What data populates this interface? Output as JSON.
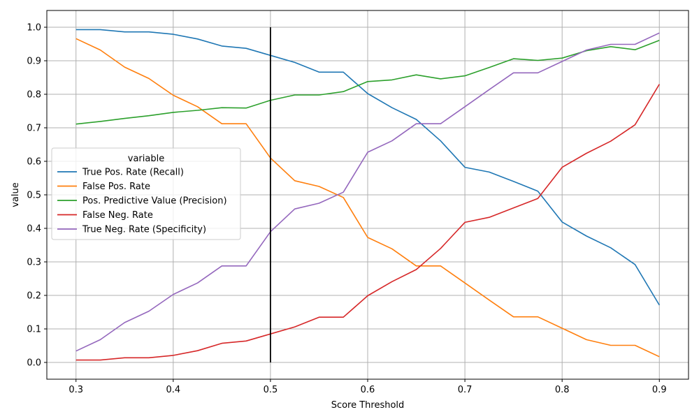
{
  "chart_data": {
    "type": "line",
    "xlabel": "Score Threshold",
    "ylabel": "value",
    "xlim": [
      0.27,
      0.93
    ],
    "ylim": [
      -0.05,
      1.05
    ],
    "xticks": [
      0.3,
      0.4,
      0.5,
      0.6,
      0.7,
      0.8,
      0.9
    ],
    "xtick_labels": [
      "0.3",
      "0.4",
      "0.5",
      "0.6",
      "0.7",
      "0.8",
      "0.9"
    ],
    "yticks": [
      0.0,
      0.1,
      0.2,
      0.3,
      0.4,
      0.5,
      0.6,
      0.7,
      0.8,
      0.9,
      1.0
    ],
    "ytick_labels": [
      "0.0",
      "0.1",
      "0.2",
      "0.3",
      "0.4",
      "0.5",
      "0.6",
      "0.7",
      "0.8",
      "0.9",
      "1.0"
    ],
    "grid": true,
    "legend": {
      "title": "variable",
      "position": "center-left"
    },
    "vline": {
      "x": 0.5,
      "ymin": 0.0,
      "ymax": 1.0,
      "color": "#000000"
    },
    "x": [
      0.3,
      0.325,
      0.35,
      0.375,
      0.4,
      0.425,
      0.45,
      0.475,
      0.5,
      0.525,
      0.55,
      0.575,
      0.6,
      0.625,
      0.65,
      0.675,
      0.7,
      0.725,
      0.75,
      0.775,
      0.8,
      0.825,
      0.85,
      0.875,
      0.9
    ],
    "series": [
      {
        "name": "True Pos. Rate (Recall)",
        "color": "#1f77b4",
        "values": [
          0.993,
          0.993,
          0.986,
          0.986,
          0.979,
          0.965,
          0.944,
          0.937,
          0.916,
          0.895,
          0.866,
          0.866,
          0.802,
          0.76,
          0.725,
          0.661,
          0.582,
          0.568,
          0.54,
          0.511,
          0.419,
          0.377,
          0.342,
          0.292,
          0.171
        ]
      },
      {
        "name": "False Pos. Rate",
        "color": "#ff7f0e",
        "values": [
          0.966,
          0.932,
          0.881,
          0.847,
          0.797,
          0.763,
          0.712,
          0.712,
          0.61,
          0.542,
          0.525,
          0.492,
          0.373,
          0.339,
          0.288,
          0.288,
          0.237,
          0.186,
          0.136,
          0.136,
          0.102,
          0.068,
          0.051,
          0.051,
          0.017
        ]
      },
      {
        "name": "Pos. Predictive Value (Precision)",
        "color": "#2ca02c",
        "values": [
          0.711,
          0.719,
          0.728,
          0.736,
          0.746,
          0.752,
          0.76,
          0.759,
          0.782,
          0.798,
          0.798,
          0.808,
          0.838,
          0.843,
          0.858,
          0.846,
          0.855,
          0.88,
          0.906,
          0.901,
          0.908,
          0.93,
          0.942,
          0.933,
          0.961
        ]
      },
      {
        "name": "False Neg. Rate",
        "color": "#d62728",
        "values": [
          0.007,
          0.007,
          0.014,
          0.014,
          0.021,
          0.035,
          0.057,
          0.064,
          0.085,
          0.106,
          0.135,
          0.135,
          0.199,
          0.241,
          0.277,
          0.34,
          0.418,
          0.433,
          0.461,
          0.489,
          0.582,
          0.624,
          0.66,
          0.709,
          0.83
        ]
      },
      {
        "name": "True Neg. Rate (Specificity)",
        "color": "#9467bd",
        "values": [
          0.034,
          0.068,
          0.119,
          0.153,
          0.203,
          0.237,
          0.288,
          0.288,
          0.39,
          0.458,
          0.475,
          0.508,
          0.627,
          0.661,
          0.712,
          0.712,
          0.763,
          0.814,
          0.864,
          0.864,
          0.898,
          0.932,
          0.949,
          0.949,
          0.983
        ]
      }
    ]
  }
}
